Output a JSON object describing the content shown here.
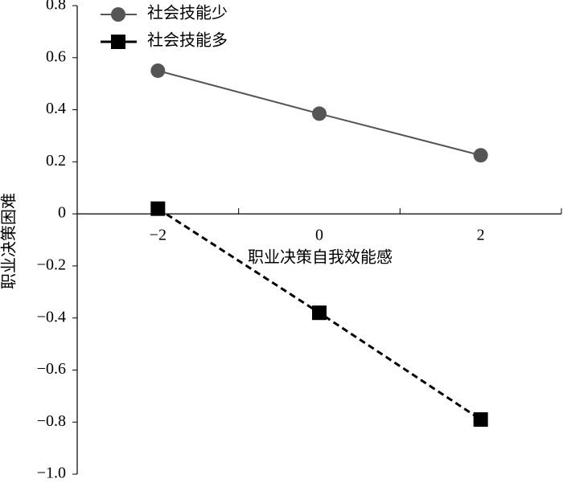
{
  "chart_data": {
    "type": "line",
    "x_label": "职业决策自我效能感",
    "y_label": "职业决策困难",
    "categories": [
      "−2",
      "0",
      "2"
    ],
    "series": [
      {
        "name": "社会技能少",
        "color": "#555555",
        "marker": "circle",
        "dashed": false,
        "values": [
          0.55,
          0.385,
          0.225
        ]
      },
      {
        "name": "社会技能多",
        "color": "#000000",
        "marker": "square",
        "dashed": true,
        "values": [
          0.02,
          -0.38,
          -0.79
        ]
      }
    ],
    "ylim": [
      -1,
      0.8
    ],
    "yticks": [
      {
        "value": -1,
        "label": "−1.0"
      },
      {
        "value": -0.8,
        "label": "−0.8"
      },
      {
        "value": -0.6,
        "label": "−0.6"
      },
      {
        "value": -0.4,
        "label": "−0.4"
      },
      {
        "value": -0.2,
        "label": "−0.2"
      },
      0,
      0.2,
      0.4,
      0.6,
      0.8
    ],
    "legend": "upper left"
  }
}
